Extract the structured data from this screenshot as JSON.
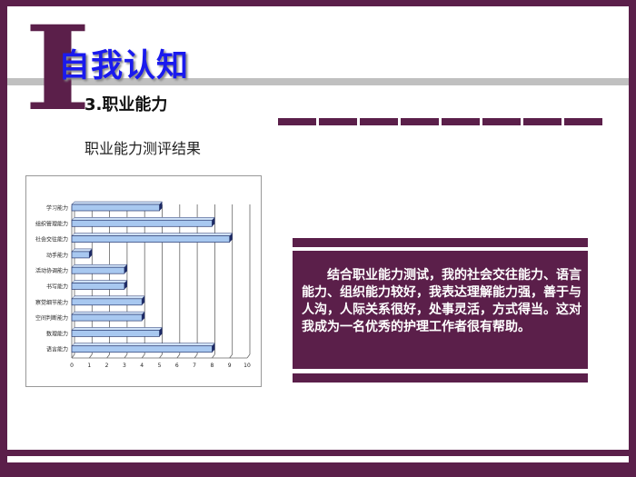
{
  "header": {
    "big_letter": "I",
    "title": "自我认知",
    "section": "3.职业能力",
    "caption": "职业能力测评结果"
  },
  "colors": {
    "frame": "#5b1f4a",
    "title": "#1a1aee",
    "bar": "#a8c8f0"
  },
  "chart_data": {
    "type": "bar",
    "orientation": "horizontal",
    "categories": [
      "学习能力",
      "组织管理能力",
      "社会交往能力",
      "动手能力",
      "活动协调能力",
      "书写能力",
      "察觉细节能力",
      "空间判断能力",
      "数理能力",
      "语言能力"
    ],
    "values": [
      5,
      8,
      9,
      1,
      3,
      3,
      4,
      4,
      5,
      8
    ],
    "xlim": [
      0,
      10
    ],
    "xticks": [
      "0",
      "1",
      "2",
      "3",
      "4",
      "5",
      "6",
      "7",
      "8",
      "9",
      "10"
    ],
    "grid": true
  },
  "summary": {
    "text": "结合职业能力测试，我的社会交往能力、语言能力、组织能力较好，我表达理解能力强，善于与人沟，人际关系很好，处事灵活，方式得当。这对我成为一名优秀的护理工作者很有帮助。"
  }
}
